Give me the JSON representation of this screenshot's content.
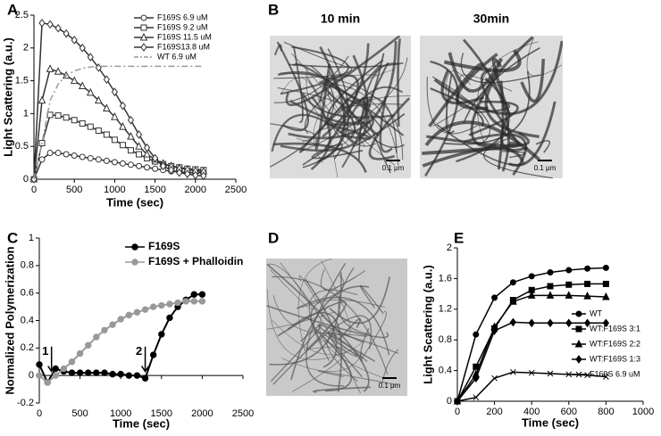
{
  "panels": {
    "labels": [
      "A",
      "B",
      "C",
      "D",
      "E"
    ],
    "micrographs": [
      {
        "title": "10 min",
        "scale": "0.1 μm"
      },
      {
        "title": "30min",
        "scale": "0.1 μm"
      },
      {
        "scale": "0.1 μm"
      }
    ]
  },
  "chart_data": [
    {
      "type": "line",
      "x_label": "Time (sec)",
      "y_label": "Light Scattering  (a.u.)",
      "x": [
        0,
        100,
        200,
        300,
        400,
        500,
        600,
        700,
        800,
        900,
        1000,
        1100,
        1200,
        1300,
        1400,
        1500,
        1600,
        1700,
        1800,
        1900,
        2000,
        2100
      ],
      "xlim": [
        0,
        2500
      ],
      "xticks": [
        0,
        500,
        1000,
        1500,
        2000,
        2500
      ],
      "ylim": [
        0,
        2.5
      ],
      "yticks": [
        0,
        0.5,
        1,
        1.5,
        2,
        2.5
      ],
      "series": [
        {
          "name": "F169S 6.9 uM",
          "color": "#333333",
          "marker": "circle",
          "values": [
            0,
            0.3,
            0.4,
            0.4,
            0.38,
            0.36,
            0.34,
            0.32,
            0.3,
            0.28,
            0.26,
            0.24,
            0.22,
            0.2,
            0.18,
            0.16,
            0.14,
            0.12,
            0.11,
            0.1,
            0.1,
            0.1
          ]
        },
        {
          "name": "F169S 9.2 uM",
          "color": "#333333",
          "marker": "square",
          "values": [
            0,
            0.55,
            0.98,
            0.97,
            0.94,
            0.9,
            0.85,
            0.8,
            0.74,
            0.68,
            0.6,
            0.52,
            0.44,
            0.38,
            0.32,
            0.27,
            0.23,
            0.2,
            0.18,
            0.16,
            0.15,
            0.14
          ]
        },
        {
          "name": "F169S 11.5 uM",
          "color": "#333333",
          "marker": "triangle",
          "values": [
            0,
            1.2,
            1.68,
            1.64,
            1.58,
            1.5,
            1.42,
            1.32,
            1.2,
            1.08,
            0.95,
            0.8,
            0.65,
            0.5,
            0.38,
            0.3,
            0.24,
            0.2,
            0.17,
            0.15,
            0.13,
            0.12
          ]
        },
        {
          "name": "F169S13.8 uM",
          "color": "#333333",
          "marker": "diamond",
          "values": [
            0,
            2.38,
            2.36,
            2.3,
            2.22,
            2.12,
            2,
            1.86,
            1.7,
            1.52,
            1.33,
            1.12,
            0.9,
            0.68,
            0.48,
            0.32,
            0.2,
            0.14,
            0.1,
            0.08,
            0.06,
            0.05
          ]
        },
        {
          "name": "WT 6.9 uM",
          "color": "#999999",
          "dash": true,
          "values": [
            0,
            0.55,
            1.2,
            1.45,
            1.58,
            1.65,
            1.69,
            1.71,
            1.72,
            1.72,
            1.72,
            1.72,
            1.72,
            1.72,
            1.72,
            1.72,
            1.72,
            1.72,
            1.72,
            1.72,
            1.72,
            1.72
          ]
        }
      ]
    },
    {
      "type": "line",
      "x_label": "Time (sec)",
      "y_label": "Normalized Polymerization",
      "x": [
        0,
        100,
        200,
        300,
        400,
        500,
        600,
        700,
        800,
        900,
        1000,
        1100,
        1200,
        1300,
        1400,
        1500,
        1600,
        1700,
        1800,
        1900,
        2000
      ],
      "xlim": [
        0,
        2500
      ],
      "xticks": [
        0,
        500,
        1000,
        1500,
        2000,
        2500
      ],
      "ylim": [
        -0.2,
        1
      ],
      "yticks": [
        -0.2,
        0,
        0.2,
        0.4,
        0.6,
        0.8,
        1
      ],
      "annotations": [
        "1",
        "2"
      ],
      "series": [
        {
          "name": "F169S",
          "color": "#000000",
          "marker": "dot",
          "values": [
            0.08,
            -0.05,
            0.05,
            0.03,
            0.02,
            0.02,
            0.02,
            0.02,
            0.02,
            0.01,
            0.01,
            0,
            0,
            -0.02,
            0.15,
            0.3,
            0.42,
            0.5,
            0.55,
            0.59,
            0.59
          ]
        },
        {
          "name": "F169S + Phalloidin",
          "color": "#999999",
          "marker": "dot",
          "values": [
            0,
            -0.05,
            0,
            0.05,
            0.1,
            0.16,
            0.22,
            0.28,
            0.33,
            0.37,
            0.41,
            0.44,
            0.46,
            0.48,
            0.5,
            0.51,
            0.52,
            0.53,
            0.54,
            0.54,
            0.54
          ]
        }
      ]
    },
    {
      "type": "line",
      "x_label": "Time (sec)",
      "y_label": "Light Scattering (a.u.)",
      "x": [
        0,
        100,
        200,
        300,
        400,
        500,
        600,
        700,
        800
      ],
      "xlim": [
        0,
        1000
      ],
      "xticks": [
        0,
        200,
        400,
        600,
        800,
        1000
      ],
      "ylim": [
        0,
        2
      ],
      "yticks": [
        0,
        0.4,
        0.8,
        1.2,
        1.6,
        2
      ],
      "series": [
        {
          "name": "WT",
          "color": "#000000",
          "marker": "circle-fill",
          "values": [
            0,
            0.87,
            1.35,
            1.55,
            1.63,
            1.68,
            1.71,
            1.73,
            1.74
          ]
        },
        {
          "name": "WT:F169S  3:1",
          "color": "#000000",
          "marker": "square-fill",
          "values": [
            0,
            0.45,
            0.95,
            1.32,
            1.45,
            1.5,
            1.52,
            1.53,
            1.53
          ]
        },
        {
          "name": "WT:F169S  2:2",
          "color": "#000000",
          "marker": "triangle-fill",
          "values": [
            0,
            0.35,
            0.97,
            1.3,
            1.38,
            1.38,
            1.38,
            1.37,
            1.36
          ]
        },
        {
          "name": "WT:F169S  1:3",
          "color": "#000000",
          "marker": "diamond-fill",
          "values": [
            0,
            0.3,
            0.92,
            1.03,
            1.02,
            1.02,
            1.02,
            1.02,
            1.02
          ]
        },
        {
          "name": "F169S 6.9 uM",
          "color": "#000000",
          "marker": "x",
          "values": [
            0,
            0.05,
            0.3,
            0.38,
            0.37,
            0.36,
            0.35,
            0.34,
            0.32
          ]
        }
      ]
    }
  ]
}
